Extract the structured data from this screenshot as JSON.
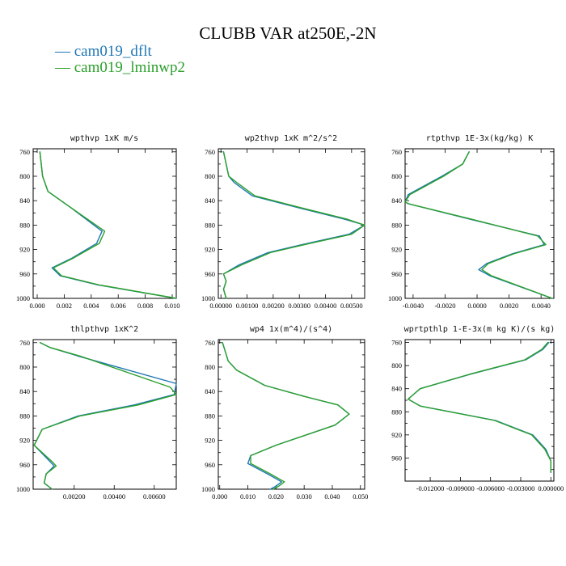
{
  "chart_data": {
    "type": "line",
    "title": "CLUBB VAR at250E,-2N",
    "legend": {
      "placement": "top-left",
      "entries": [
        {
          "label": "— cam019_dflt",
          "color": "#1f77b4"
        },
        {
          "label": "— cam019_lminwp2",
          "color": "#2ca02c"
        }
      ]
    },
    "colors": {
      "cam019_dflt": "#1f77b4",
      "cam019_lminwp2": "#2ca02c"
    },
    "panels": [
      {
        "title": "wpthvp  1xK m/s",
        "xlim": [
          -0.0003,
          0.0103
        ],
        "ylim": [
          755,
          1000
        ],
        "xticks": [
          0.0,
          0.002,
          0.004,
          0.006,
          0.008,
          0.01
        ],
        "xtick_labels": [
          "0.000",
          "0.002",
          "0.004",
          "0.006",
          "0.008",
          "0.010"
        ],
        "yticks": [
          760,
          800,
          840,
          880,
          920,
          960,
          1000
        ],
        "ytick_labels": [
          "760",
          "800",
          "840",
          "880",
          "920",
          "960",
          "1000"
        ],
        "series": [
          {
            "name": "cam019_dflt",
            "x": [
              0.0002,
              0.0003,
              0.0004,
              0.0008,
              0.0024,
              0.0048,
              0.0044,
              0.0025,
              0.0011,
              0.0017,
              0.0045,
              0.0103
            ],
            "y": [
              760,
              780,
              800,
              825,
              850,
              890,
              910,
              935,
              950,
              963,
              978,
              1000
            ]
          },
          {
            "name": "cam019_lminwp2",
            "x": [
              0.0002,
              0.0003,
              0.0004,
              0.0008,
              0.0024,
              0.005,
              0.0046,
              0.0026,
              0.0012,
              0.0018,
              0.0046,
              0.0103
            ],
            "y": [
              760,
              780,
              800,
              825,
              850,
              890,
              910,
              935,
              950,
              963,
              978,
              1000
            ]
          }
        ]
      },
      {
        "title": "wp2thvp  1xK m^2/s^2",
        "xlim": [
          -0.0001,
          0.0055
        ],
        "ylim": [
          755,
          1000
        ],
        "xticks": [
          0.0,
          0.001,
          0.002,
          0.003,
          0.004,
          0.005
        ],
        "xtick_labels": [
          "0.00000",
          "0.00100",
          "0.00200",
          "0.00300",
          "0.00400",
          "0.00500"
        ],
        "yticks": [
          760,
          800,
          840,
          880,
          920,
          960,
          1000
        ],
        "ytick_labels": [
          "760",
          "800",
          "840",
          "880",
          "920",
          "960",
          "1000"
        ],
        "series": [
          {
            "name": "cam019_dflt",
            "x": [
              0.0001,
              0.0002,
              0.0003,
              0.0005,
              0.0012,
              0.003,
              0.0047,
              0.0055,
              0.0049,
              0.0031,
              0.0018,
              0.0007,
              0.0001,
              0.0002,
              0.0001,
              0.0002
            ],
            "y": [
              760,
              780,
              800,
              810,
              832,
              852,
              870,
              880,
              895,
              912,
              925,
              945,
              960,
              972,
              985,
              1000
            ]
          },
          {
            "name": "cam019_lminwp2",
            "x": [
              0.0001,
              0.0002,
              0.0003,
              0.0006,
              0.0013,
              0.0031,
              0.0048,
              0.0055,
              0.005,
              0.0032,
              0.0019,
              0.0008,
              0.0001,
              0.0002,
              0.0001,
              0.0002
            ],
            "y": [
              760,
              780,
              800,
              810,
              832,
              852,
              870,
              880,
              895,
              912,
              925,
              945,
              960,
              972,
              985,
              1000
            ]
          }
        ]
      },
      {
        "title": "rtpthvp  1E-3x(kg/kg) K",
        "xlim": [
          -0.0045,
          0.0048
        ],
        "ylim": [
          755,
          1000
        ],
        "xticks": [
          -0.004,
          -0.002,
          0.0,
          0.002,
          0.004
        ],
        "xtick_labels": [
          "-0.0040",
          "-0.0020",
          "0.0000",
          "0.0020",
          "0.0040"
        ],
        "yticks": [
          760,
          800,
          840,
          880,
          920,
          960,
          1000
        ],
        "ytick_labels": [
          "760",
          "800",
          "840",
          "880",
          "920",
          "960",
          "1000"
        ],
        "series": [
          {
            "name": "cam019_dflt",
            "x": [
              -0.0005,
              -0.0009,
              -0.0022,
              -0.0043,
              -0.0045,
              -0.0043,
              -0.0005,
              0.0039,
              0.0042,
              0.0022,
              0.0006,
              0.0001,
              0.0008,
              0.0047
            ],
            "y": [
              760,
              780,
              800,
              830,
              842,
              845,
              870,
              898,
              912,
              927,
              943,
              953,
              963,
              1000
            ]
          },
          {
            "name": "cam019_lminwp2",
            "x": [
              -0.0005,
              -0.0009,
              -0.0021,
              -0.0042,
              -0.0045,
              -0.0043,
              -0.0004,
              0.0038,
              0.0043,
              0.0023,
              0.0007,
              0.0003,
              0.0009,
              0.0047
            ],
            "y": [
              760,
              780,
              800,
              830,
              842,
              845,
              870,
              898,
              912,
              927,
              943,
              953,
              963,
              1000
            ]
          }
        ]
      },
      {
        "title": "thlpthvp  1xK^2",
        "xlim": [
          -5e-05,
          0.0071
        ],
        "ylim": [
          755,
          1000
        ],
        "xticks": [
          0.002,
          0.004,
          0.006
        ],
        "xtick_labels": [
          "0.00200",
          "0.00400",
          "0.00600"
        ],
        "yticks": [
          760,
          800,
          840,
          880,
          920,
          960,
          1000
        ],
        "ytick_labels": [
          "760",
          "800",
          "840",
          "880",
          "920",
          "960",
          "1000"
        ],
        "series": [
          {
            "name": "cam019_dflt",
            "x": [
              0.0003,
              0.0008,
              0.0022,
              0.0071,
              0.007,
              0.005,
              0.0022,
              0.0004,
              0.0,
              0.0008,
              0.001,
              0.0006,
              0.0005,
              0.0009
            ],
            "y": [
              760,
              768,
              782,
              827,
              845,
              862,
              880,
              902,
              928,
              955,
              962,
              975,
              990,
              1000
            ]
          },
          {
            "name": "cam019_lminwp2",
            "x": [
              0.0003,
              0.0008,
              0.0023,
              0.0068,
              0.0071,
              0.0052,
              0.0023,
              0.0004,
              0.0,
              0.0009,
              0.0011,
              0.0006,
              0.0005,
              0.0009
            ],
            "y": [
              760,
              768,
              782,
              833,
              845,
              862,
              880,
              902,
              928,
              955,
              962,
              975,
              990,
              1000
            ]
          }
        ]
      },
      {
        "title": "wp4  1x(m^4)/(s^4)",
        "xlim": [
          -0.0005,
          0.0515
        ],
        "ylim": [
          755,
          1000
        ],
        "xticks": [
          0.0,
          0.01,
          0.02,
          0.03,
          0.04,
          0.05
        ],
        "xtick_labels": [
          "0.000",
          "0.010",
          "0.020",
          "0.030",
          "0.040",
          "0.050"
        ],
        "yticks": [
          760,
          800,
          840,
          880,
          920,
          960,
          1000
        ],
        "ytick_labels": [
          "760",
          "800",
          "840",
          "880",
          "920",
          "960",
          "1000"
        ],
        "series": [
          {
            "name": "cam019_dflt",
            "x": [
              0.001,
              0.002,
              0.003,
              0.006,
              0.016,
              0.03,
              0.042,
              0.046,
              0.041,
              0.02,
              0.011,
              0.01,
              0.017,
              0.022,
              0.02,
              0.018
            ],
            "y": [
              760,
              775,
              790,
              805,
              830,
              848,
              862,
              877,
              895,
              928,
              945,
              958,
              975,
              988,
              995,
              1000
            ]
          },
          {
            "name": "cam019_lminwp2",
            "x": [
              0.001,
              0.002,
              0.003,
              0.006,
              0.016,
              0.03,
              0.042,
              0.046,
              0.041,
              0.02,
              0.011,
              0.011,
              0.018,
              0.023,
              0.021,
              0.019
            ],
            "y": [
              760,
              775,
              790,
              805,
              830,
              848,
              862,
              877,
              895,
              928,
              945,
              958,
              975,
              988,
              995,
              1000
            ]
          }
        ]
      },
      {
        "title": "wprtpthlp  1-E-3x(m kg K)/(s kg)",
        "xlim": [
          -0.0145,
          0.0003
        ],
        "ylim": [
          755,
          1000
        ],
        "xticks": [
          -0.012,
          -0.009,
          -0.006,
          -0.003,
          0.0
        ],
        "xtick_labels": [
          "-0.012000",
          "-0.009000",
          "-0.006000",
          "-0.003000",
          "0.000000"
        ],
        "yticks": [
          760,
          800,
          840,
          880,
          920,
          960
        ],
        "ytick_labels": [
          "760",
          "800",
          "840",
          "880",
          "920",
          "960"
        ],
        "series": [
          {
            "name": "cam019_dflt",
            "x": [
              -0.0002,
              -0.0008,
              -0.0025,
              -0.008,
              -0.013,
              -0.0142,
              -0.013,
              -0.0055,
              -0.0018,
              -0.0005,
              0.0,
              0.0
            ],
            "y": [
              760,
              772,
              790,
              815,
              840,
              858,
              870,
              895,
              920,
              945,
              965,
              985
            ]
          },
          {
            "name": "cam019_lminwp2",
            "x": [
              -0.0003,
              -0.0009,
              -0.0026,
              -0.0081,
              -0.013,
              -0.0142,
              -0.013,
              -0.0056,
              -0.0019,
              -0.0006,
              0.0,
              0.0
            ],
            "y": [
              760,
              772,
              790,
              815,
              840,
              858,
              870,
              895,
              920,
              945,
              965,
              985
            ]
          }
        ]
      }
    ]
  }
}
